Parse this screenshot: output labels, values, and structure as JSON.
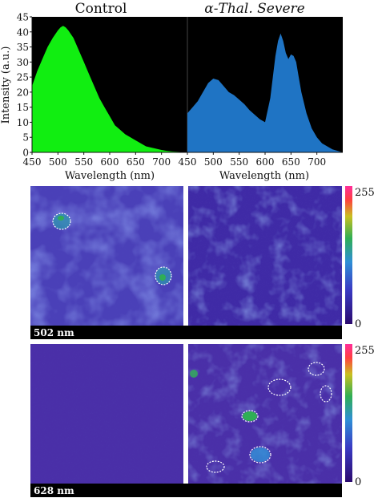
{
  "chart_data": [
    {
      "type": "area",
      "title": "Control",
      "xlabel": "Wavelength (nm)",
      "ylabel": "Intensity (a.u.)",
      "xlim": [
        450,
        750
      ],
      "ylim": [
        0,
        45
      ],
      "x_ticks": [
        450,
        500,
        550,
        600,
        650,
        700
      ],
      "y_ticks": [
        0,
        5,
        10,
        15,
        20,
        25,
        30,
        35,
        40,
        45
      ],
      "background": "#000000",
      "series": [
        {
          "color": "#11ee11",
          "x": [
            450,
            460,
            470,
            480,
            490,
            500,
            505,
            510,
            515,
            520,
            530,
            540,
            550,
            560,
            570,
            580,
            590,
            600,
            610,
            620,
            630,
            640,
            650,
            660,
            670,
            680,
            690,
            700,
            710,
            720,
            730,
            740,
            750
          ],
          "y": [
            22,
            27,
            31,
            35,
            38,
            40.5,
            41.5,
            42,
            41.5,
            40.5,
            38,
            34,
            30,
            26,
            22,
            18,
            15,
            12,
            9,
            7.5,
            6,
            5,
            4,
            3,
            2,
            1.6,
            1.2,
            0.8,
            0.5,
            0.3,
            0.2,
            0.1,
            0
          ]
        }
      ]
    },
    {
      "type": "area",
      "title": "α-Thal. Severe",
      "xlabel": "Wavelength (nm)",
      "xlim": [
        450,
        750
      ],
      "ylim": [
        0,
        45
      ],
      "x_ticks": [
        450,
        500,
        550,
        600,
        650,
        700
      ],
      "background": "#000000",
      "series": [
        {
          "color": "#1f74c4",
          "x": [
            450,
            460,
            470,
            480,
            490,
            500,
            510,
            520,
            530,
            540,
            550,
            560,
            570,
            580,
            590,
            600,
            610,
            615,
            620,
            625,
            630,
            635,
            640,
            645,
            650,
            655,
            660,
            665,
            670,
            680,
            690,
            700,
            710,
            720,
            730,
            740,
            750
          ],
          "y": [
            13,
            15,
            17,
            20,
            23,
            24.5,
            24,
            22,
            20,
            19,
            17.5,
            16,
            14,
            12.5,
            11,
            10,
            18,
            25,
            32,
            37,
            39.5,
            37,
            33,
            31,
            32.5,
            32,
            30,
            25,
            20,
            13,
            8,
            5,
            3,
            2,
            1,
            0.5,
            0
          ]
        }
      ]
    },
    {
      "type": "heatmap",
      "description_label": "502 nm",
      "panels": [
        "Control",
        "α-Thal. Severe"
      ],
      "colorbar": {
        "min_label": "0",
        "max_label": "255",
        "range": [
          0,
          255
        ]
      },
      "colormap": [
        "#2b0a6e",
        "#3a3bc4",
        "#2f8fd6",
        "#2fae55",
        "#c9c020",
        "#ff4040",
        "#ff2e9a"
      ],
      "background_color": "#4a40b8"
    },
    {
      "type": "heatmap",
      "description_label": "628 nm",
      "panels": [
        "Control",
        "α-Thal. Severe"
      ],
      "colorbar": {
        "min_label": "0",
        "max_label": "255",
        "range": [
          0,
          255
        ]
      },
      "colormap": [
        "#2b0a6e",
        "#3a3bc4",
        "#2f8fd6",
        "#2fae55",
        "#c9c020",
        "#ff4040",
        "#ff2e9a"
      ],
      "background_color": "#4a2fa8"
    }
  ]
}
